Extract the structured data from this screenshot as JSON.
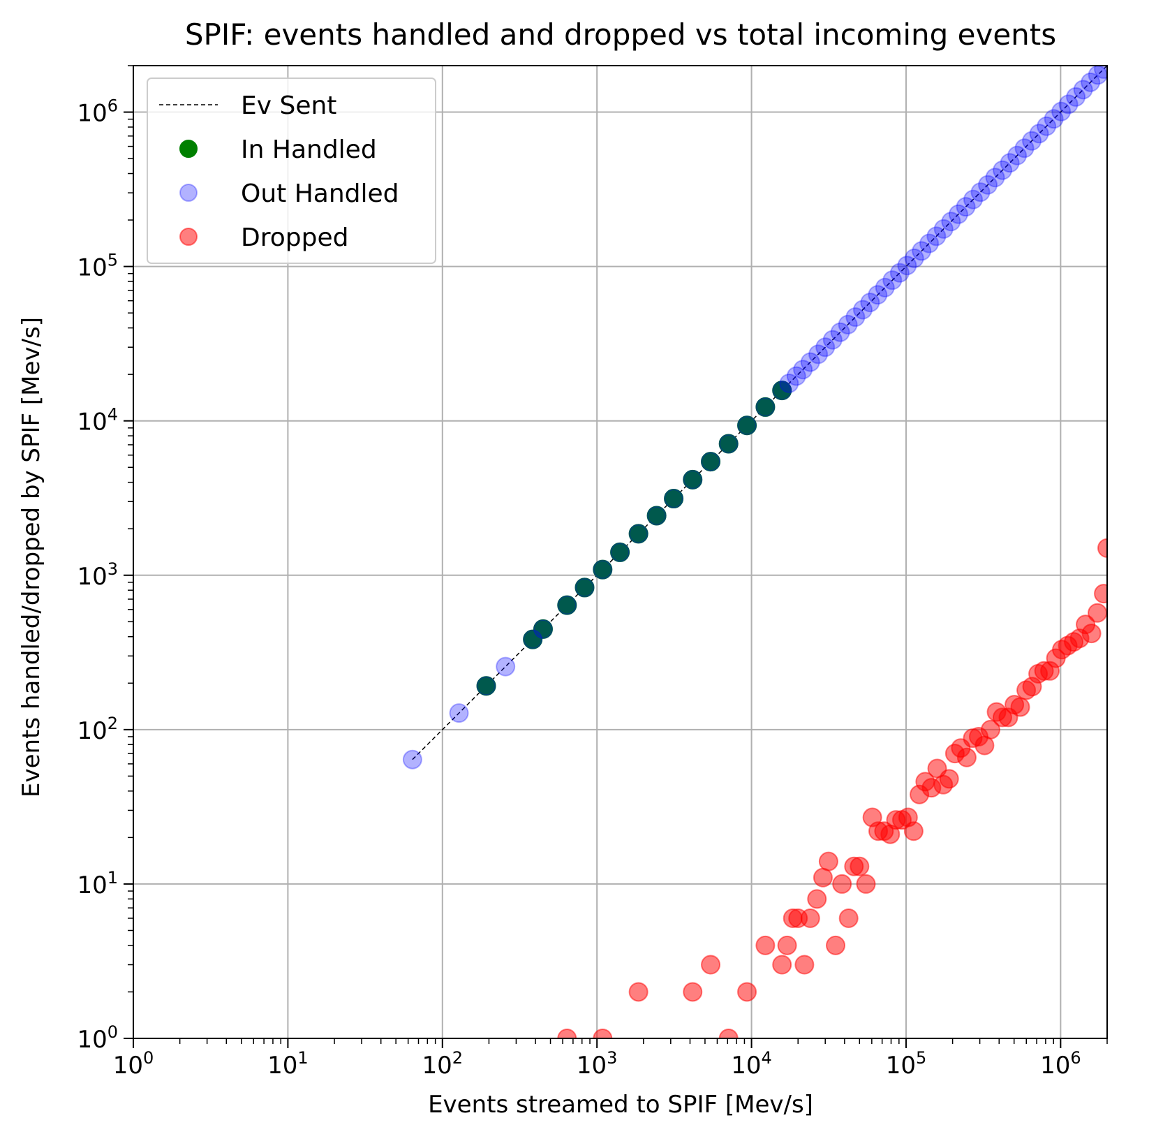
{
  "chart_data": {
    "type": "scatter",
    "title": "SPIF: events handled and dropped vs total incoming events",
    "xlabel": "Events streamed to SPIF [Mev/s]",
    "ylabel": "Events handled/dropped by SPIF [Mev/s]",
    "xscale": "log",
    "yscale": "log",
    "xlim": [
      1,
      2000000
    ],
    "ylim": [
      1,
      2000000
    ],
    "grid": true,
    "legend_position": "top-left",
    "x_ticks": [
      {
        "value": 1,
        "base": "10",
        "exp": "0"
      },
      {
        "value": 10,
        "base": "10",
        "exp": "1"
      },
      {
        "value": 100,
        "base": "10",
        "exp": "2"
      },
      {
        "value": 1000,
        "base": "10",
        "exp": "3"
      },
      {
        "value": 10000,
        "base": "10",
        "exp": "4"
      },
      {
        "value": 100000,
        "base": "10",
        "exp": "5"
      },
      {
        "value": 1000000,
        "base": "10",
        "exp": "6"
      }
    ],
    "y_ticks": [
      {
        "value": 1,
        "base": "10",
        "exp": "0"
      },
      {
        "value": 10,
        "base": "10",
        "exp": "1"
      },
      {
        "value": 100,
        "base": "10",
        "exp": "2"
      },
      {
        "value": 1000,
        "base": "10",
        "exp": "3"
      },
      {
        "value": 10000,
        "base": "10",
        "exp": "4"
      },
      {
        "value": 100000,
        "base": "10",
        "exp": "5"
      },
      {
        "value": 1000000,
        "base": "10",
        "exp": "6"
      }
    ],
    "series": [
      {
        "name": "Ev Sent",
        "kind": "line",
        "style": "dashed",
        "color": "#000000",
        "x": [
          64,
          2000000
        ],
        "y": [
          64,
          2000000
        ]
      },
      {
        "name": "In Handled",
        "kind": "scatter",
        "color": "#008000",
        "alpha": 1.0,
        "x": [
          192,
          384,
          448,
          640,
          832,
          1088,
          1408,
          1856,
          2432,
          3136,
          4160,
          5440,
          7104,
          9344,
          12288,
          15744
        ],
        "y": [
          192,
          384,
          448,
          640,
          832,
          1088,
          1408,
          1856,
          2432,
          3136,
          4160,
          5440,
          7104,
          9344,
          12288,
          15744
        ]
      },
      {
        "name": "Out Handled",
        "kind": "scatter",
        "color": "#0000ff",
        "alpha": 0.3,
        "x": [
          64,
          128,
          256,
          192,
          384,
          448,
          640,
          832,
          1088,
          1408,
          1856,
          2432,
          3136,
          4160,
          5440,
          7104,
          9344,
          12288,
          15744,
          17500,
          19500,
          21500,
          24000,
          27000,
          30000,
          33500,
          37500,
          42000,
          47000,
          52500,
          58500,
          65500,
          73000,
          81500,
          91000,
          101500,
          113000,
          126000,
          141000,
          157000,
          175000,
          195500,
          218000,
          243500,
          271500,
          303000,
          338000,
          377000,
          420500,
          469000,
          523000,
          583500,
          651000,
          726000,
          810000,
          903500,
          1008000,
          1124000,
          1254000,
          1399000,
          1560000,
          1740000,
          1900000
        ],
        "y": [
          64,
          128,
          256,
          192,
          384,
          448,
          640,
          832,
          1088,
          1408,
          1856,
          2432,
          3136,
          4160,
          5440,
          7104,
          9344,
          12288,
          15744,
          17500,
          19500,
          21500,
          24000,
          27000,
          30000,
          33500,
          37500,
          42000,
          47000,
          52500,
          58500,
          65500,
          73000,
          81500,
          91000,
          101500,
          113000,
          126000,
          141000,
          157000,
          175000,
          195500,
          218000,
          243500,
          271500,
          303000,
          338000,
          377000,
          420500,
          469000,
          523000,
          583500,
          651000,
          726000,
          810000,
          903500,
          1008000,
          1124000,
          1254000,
          1399000,
          1560000,
          1740000,
          1900000
        ]
      },
      {
        "name": "Dropped",
        "kind": "scatter",
        "color": "#ff0000",
        "alpha": 0.5,
        "x": [
          640,
          1088,
          1856,
          4160,
          5440,
          7104,
          9344,
          12288,
          15744,
          17000,
          18500,
          20000,
          22000,
          24000,
          26500,
          29000,
          31500,
          35000,
          38500,
          42500,
          46000,
          50000,
          55000,
          60500,
          66000,
          72000,
          79000,
          86000,
          94000,
          103000,
          112000,
          122000,
          133000,
          146000,
          159000,
          174000,
          190000,
          207000,
          226000,
          247000,
          270000,
          295000,
          322000,
          352000,
          385000,
          420000,
          459000,
          502000,
          548000,
          599000,
          654000,
          715000,
          781000,
          853000,
          932000,
          1018000,
          1112000,
          1215000,
          1327000,
          1450000,
          1584000,
          1730000,
          1900000,
          2000000
        ],
        "y": [
          1,
          1,
          2,
          2,
          3,
          1,
          2,
          4,
          3,
          4,
          6,
          6,
          3,
          6,
          8,
          11,
          14,
          4,
          10,
          6,
          13,
          13,
          10,
          27,
          22,
          22,
          21,
          26,
          26,
          27,
          22,
          38,
          46,
          42,
          56,
          44,
          48,
          70,
          76,
          66,
          88,
          90,
          79,
          100,
          130,
          120,
          120,
          145,
          140,
          180,
          190,
          230,
          240,
          240,
          290,
          330,
          350,
          370,
          390,
          480,
          420,
          570,
          760,
          1500
        ]
      }
    ]
  }
}
